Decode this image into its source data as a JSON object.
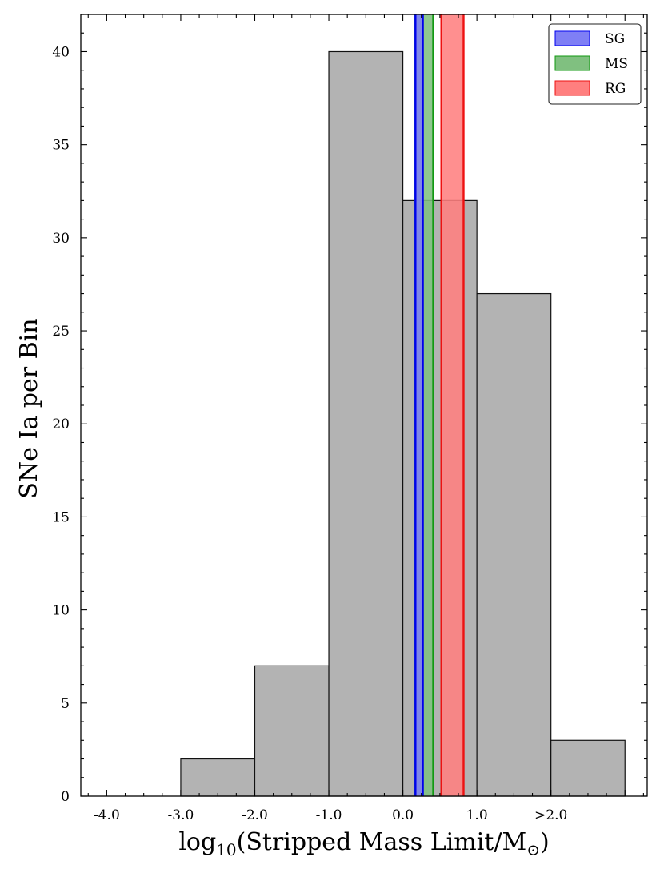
{
  "chart_data": {
    "type": "bar",
    "xlabel": "log",
    "xlabel_sub": "10",
    "xlabel_rest": "(Stripped Mass Limit/M",
    "xlabel_sub2": "⊙",
    "xlabel_end": ")",
    "ylabel": "SNe Ia per Bin",
    "xlim": [
      -4.35,
      3.3
    ],
    "ylim": [
      0,
      42
    ],
    "x_ticks": [
      {
        "value": -4.0,
        "label": "-4.0"
      },
      {
        "value": -3.0,
        "label": "-3.0"
      },
      {
        "value": -2.0,
        "label": "-2.0"
      },
      {
        "value": -1.0,
        "label": "-1.0"
      },
      {
        "value": 0.0,
        "label": "0.0"
      },
      {
        "value": 1.0,
        "label": "1.0"
      },
      {
        "value": 2.0,
        "label": ">2.0"
      }
    ],
    "y_ticks": [
      0,
      5,
      10,
      15,
      20,
      25,
      30,
      35,
      40
    ],
    "bins": [
      {
        "x0": -3.0,
        "x1": -2.0,
        "count": 2
      },
      {
        "x0": -2.0,
        "x1": -1.0,
        "count": 7
      },
      {
        "x0": -1.0,
        "x1": 0.0,
        "count": 40
      },
      {
        "x0": 0.0,
        "x1": 1.0,
        "count": 32
      },
      {
        "x0": 1.0,
        "x1": 2.0,
        "count": 27
      },
      {
        "x0": 2.0,
        "x1": 3.0,
        "count": 3
      }
    ],
    "bar_color": "#b3b3b3",
    "bands": [
      {
        "name": "SG",
        "x0": 0.17,
        "x1": 0.27,
        "fill": "#7f7ff5",
        "edge": "#0000ee"
      },
      {
        "name": "MS",
        "x0": 0.17,
        "x1": 0.41,
        "fill": "#80c080",
        "edge": "#119911"
      },
      {
        "name": "RG",
        "x0": 0.52,
        "x1": 0.82,
        "fill": "#ff7f7f",
        "edge": "#ee1111"
      }
    ],
    "legend": [
      "SG",
      "MS",
      "RG"
    ],
    "legend_position": "top-right"
  }
}
